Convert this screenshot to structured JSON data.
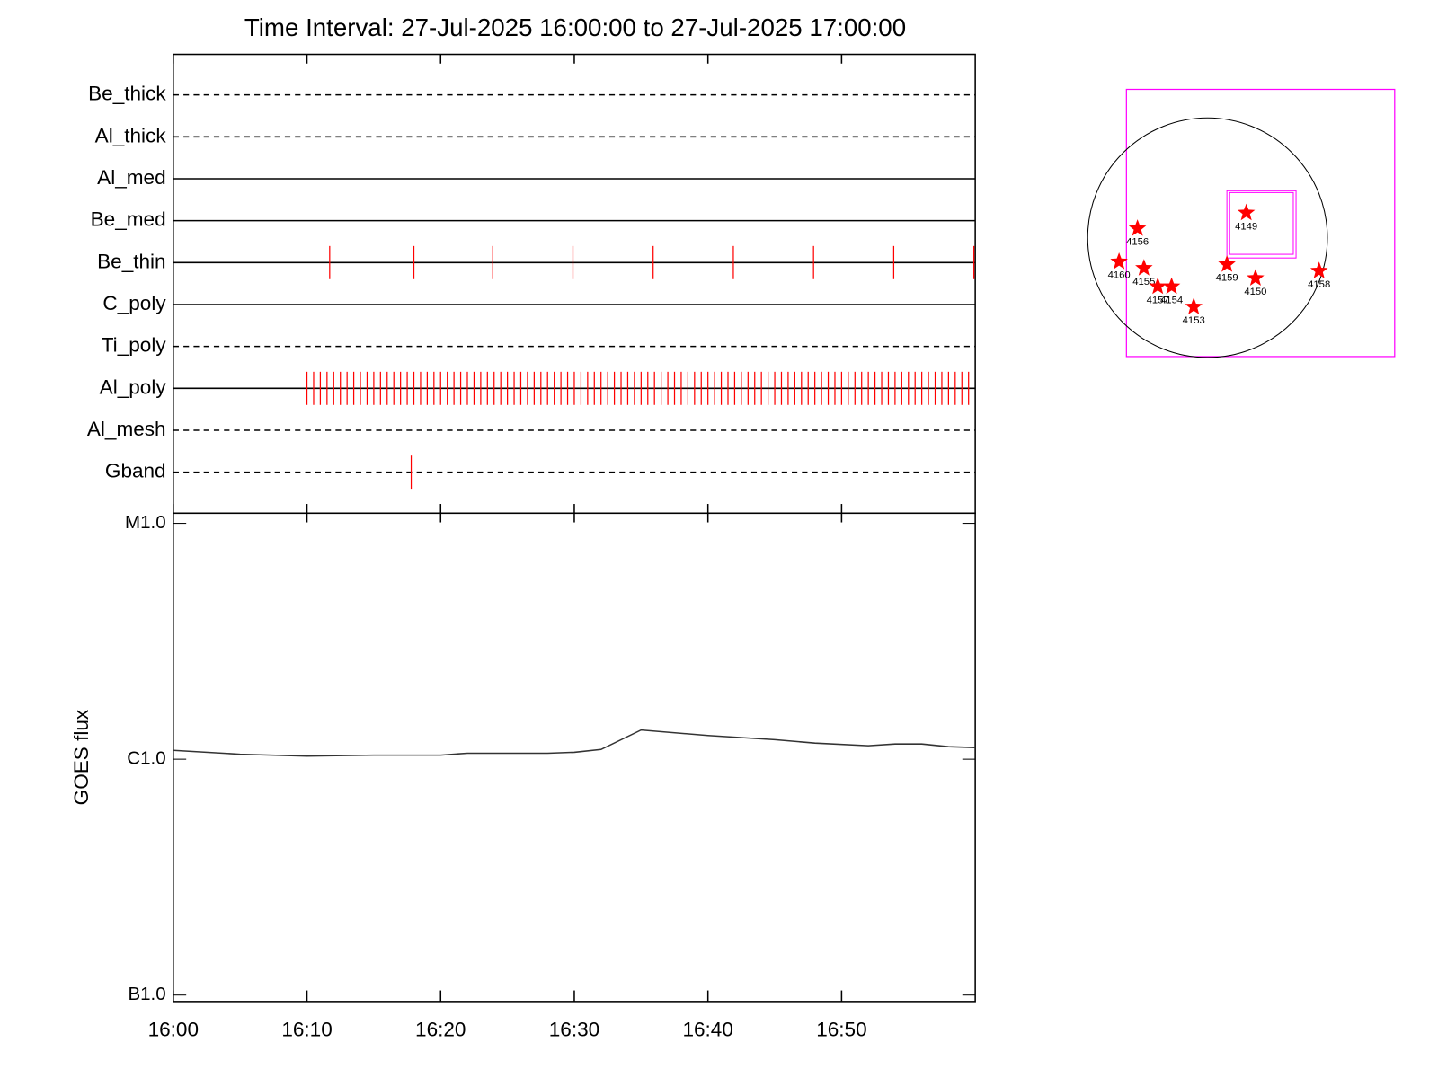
{
  "chart_data": [
    {
      "type": "events",
      "title": "Time Interval: 27-Jul-2025 16:00:00 to 27-Jul-2025 17:00:00",
      "xlim": [
        0,
        60
      ],
      "color": "#ff0000",
      "rows": [
        {
          "name": "Be_thick",
          "line": "dashed",
          "events": []
        },
        {
          "name": "Al_thick",
          "line": "dashed",
          "events": []
        },
        {
          "name": "Al_med",
          "line": "solid",
          "events": []
        },
        {
          "name": "Be_med",
          "line": "solid",
          "events": []
        },
        {
          "name": "Be_thin",
          "line": "solid",
          "events": [
            11.7,
            18.0,
            23.9,
            29.9,
            35.9,
            41.9,
            47.9,
            53.9,
            59.9
          ]
        },
        {
          "name": "C_poly",
          "line": "solid",
          "events": []
        },
        {
          "name": "Ti_poly",
          "line": "dashed",
          "events": []
        },
        {
          "name": "Al_poly",
          "line": "solid",
          "events": [
            10.0,
            10.5,
            11.0,
            11.5,
            12.0,
            12.5,
            13.0,
            13.5,
            14.0,
            14.5,
            15.0,
            15.5,
            16.0,
            16.5,
            17.0,
            17.5,
            18.0,
            18.5,
            19.0,
            19.5,
            20.0,
            20.5,
            21.0,
            21.5,
            22.0,
            22.5,
            23.0,
            23.5,
            24.0,
            24.5,
            25.0,
            25.5,
            26.0,
            26.5,
            27.0,
            27.5,
            28.0,
            28.5,
            29.0,
            29.5,
            30.0,
            30.5,
            31.0,
            31.5,
            32.0,
            32.5,
            33.0,
            33.5,
            34.0,
            34.5,
            35.0,
            35.5,
            36.0,
            36.5,
            37.0,
            37.5,
            38.0,
            38.5,
            39.0,
            39.5,
            40.0,
            40.5,
            41.0,
            41.5,
            42.0,
            42.5,
            43.0,
            43.5,
            44.0,
            44.5,
            45.0,
            45.5,
            46.0,
            46.5,
            47.0,
            47.5,
            48.0,
            48.5,
            49.0,
            49.5,
            50.0,
            50.5,
            51.0,
            51.5,
            52.0,
            52.5,
            53.0,
            53.5,
            54.0,
            54.5,
            55.0,
            55.5,
            56.0,
            56.5,
            57.0,
            57.5,
            58.0,
            58.5,
            59.0,
            59.5
          ]
        },
        {
          "name": "Al_mesh",
          "line": "dashed",
          "events": []
        },
        {
          "name": "Gband",
          "line": "dashed",
          "events": [
            17.8
          ]
        }
      ]
    },
    {
      "type": "line",
      "ylabel": "GOES flux",
      "log_scale": true,
      "color": "#333333",
      "xlim": [
        0,
        60
      ],
      "xticks": [
        {
          "value": 0,
          "label": "16:00"
        },
        {
          "value": 10,
          "label": "16:10"
        },
        {
          "value": 20,
          "label": "16:20"
        },
        {
          "value": 30,
          "label": "16:30"
        },
        {
          "value": 40,
          "label": "16:40"
        },
        {
          "value": 50,
          "label": "16:50"
        }
      ],
      "ylim": [
        1e-07,
        1e-05
      ],
      "yticks": [
        {
          "value": 1e-07,
          "label": "B1.0"
        },
        {
          "value": 1e-06,
          "label": "C1.0"
        },
        {
          "value": 1e-05,
          "label": "M1.0"
        }
      ],
      "x": [
        0,
        5,
        10,
        15,
        20,
        22,
        25,
        28,
        30,
        32,
        35,
        40,
        45,
        48,
        52,
        54,
        56,
        58,
        60
      ],
      "values": [
        1.09e-06,
        1.05e-06,
        1.03e-06,
        1.04e-06,
        1.04e-06,
        1.06e-06,
        1.06e-06,
        1.06e-06,
        1.07e-06,
        1.1e-06,
        1.33e-06,
        1.26e-06,
        1.21e-06,
        1.17e-06,
        1.14e-06,
        1.16e-06,
        1.16e-06,
        1.13e-06,
        1.12e-06
      ]
    }
  ],
  "map": {
    "regions": [
      "4149",
      "4156",
      "4160",
      "4155",
      "4157",
      "4154",
      "4153",
      "4159",
      "4150",
      "4158"
    ]
  }
}
